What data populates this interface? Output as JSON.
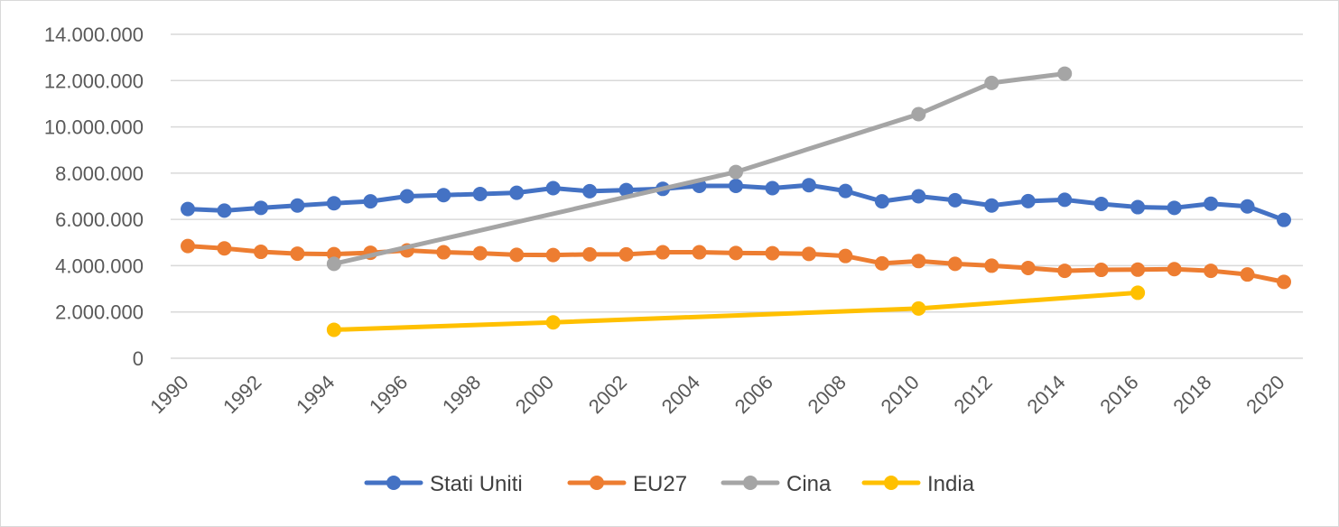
{
  "chart_data": {
    "type": "line",
    "title": "",
    "xlabel": "",
    "ylabel": "",
    "xlim": [
      1990,
      2020
    ],
    "ylim": [
      0,
      14000000
    ],
    "y_ticks": [
      0,
      2000000,
      4000000,
      6000000,
      8000000,
      10000000,
      12000000,
      14000000
    ],
    "y_tick_labels": [
      "0",
      "2.000.000",
      "4.000.000",
      "6.000.000",
      "8.000.000",
      "10.000.000",
      "12.000.000",
      "14.000.000"
    ],
    "x_ticks": [
      1990,
      1992,
      1994,
      1996,
      1998,
      2000,
      2002,
      2004,
      2006,
      2008,
      2010,
      2012,
      2014,
      2016,
      2018,
      2020
    ],
    "x_tick_labels": [
      "1990",
      "1992",
      "1994",
      "1996",
      "1998",
      "2000",
      "2002",
      "2004",
      "2006",
      "2008",
      "2010",
      "2012",
      "2014",
      "2016",
      "2018",
      "2020"
    ],
    "grid": "horizontal",
    "legend_position": "bottom",
    "series": [
      {
        "name": "Stati Uniti",
        "color": "#4472C4",
        "points": [
          [
            1990,
            6450000
          ],
          [
            1991,
            6380000
          ],
          [
            1992,
            6500000
          ],
          [
            1993,
            6600000
          ],
          [
            1994,
            6700000
          ],
          [
            1995,
            6780000
          ],
          [
            1996,
            7000000
          ],
          [
            1997,
            7050000
          ],
          [
            1998,
            7100000
          ],
          [
            1999,
            7150000
          ],
          [
            2000,
            7350000
          ],
          [
            2001,
            7220000
          ],
          [
            2002,
            7270000
          ],
          [
            2003,
            7320000
          ],
          [
            2004,
            7450000
          ],
          [
            2005,
            7450000
          ],
          [
            2006,
            7350000
          ],
          [
            2007,
            7480000
          ],
          [
            2008,
            7230000
          ],
          [
            2009,
            6780000
          ],
          [
            2010,
            7000000
          ],
          [
            2011,
            6830000
          ],
          [
            2012,
            6600000
          ],
          [
            2013,
            6790000
          ],
          [
            2014,
            6850000
          ],
          [
            2015,
            6670000
          ],
          [
            2016,
            6530000
          ],
          [
            2017,
            6500000
          ],
          [
            2018,
            6680000
          ],
          [
            2019,
            6560000
          ],
          [
            2020,
            5980000
          ]
        ]
      },
      {
        "name": "EU27",
        "color": "#ED7D31",
        "points": [
          [
            1990,
            4850000
          ],
          [
            1991,
            4750000
          ],
          [
            1992,
            4600000
          ],
          [
            1993,
            4520000
          ],
          [
            1994,
            4500000
          ],
          [
            1995,
            4560000
          ],
          [
            1996,
            4660000
          ],
          [
            1997,
            4580000
          ],
          [
            1998,
            4540000
          ],
          [
            1999,
            4470000
          ],
          [
            2000,
            4460000
          ],
          [
            2001,
            4490000
          ],
          [
            2002,
            4490000
          ],
          [
            2003,
            4580000
          ],
          [
            2004,
            4580000
          ],
          [
            2005,
            4550000
          ],
          [
            2006,
            4540000
          ],
          [
            2007,
            4510000
          ],
          [
            2008,
            4420000
          ],
          [
            2009,
            4100000
          ],
          [
            2010,
            4200000
          ],
          [
            2011,
            4080000
          ],
          [
            2012,
            4000000
          ],
          [
            2013,
            3900000
          ],
          [
            2014,
            3780000
          ],
          [
            2015,
            3820000
          ],
          [
            2016,
            3830000
          ],
          [
            2017,
            3850000
          ],
          [
            2018,
            3780000
          ],
          [
            2019,
            3620000
          ],
          [
            2020,
            3300000
          ]
        ]
      },
      {
        "name": "Cina",
        "color": "#A5A5A5",
        "points": [
          [
            1994,
            4080000
          ],
          [
            2005,
            8050000
          ],
          [
            2010,
            10550000
          ],
          [
            2012,
            11900000
          ],
          [
            2014,
            12300000
          ]
        ]
      },
      {
        "name": "India",
        "color": "#FFC000",
        "points": [
          [
            1994,
            1230000
          ],
          [
            2000,
            1550000
          ],
          [
            2010,
            2150000
          ],
          [
            2016,
            2830000
          ]
        ]
      }
    ]
  }
}
